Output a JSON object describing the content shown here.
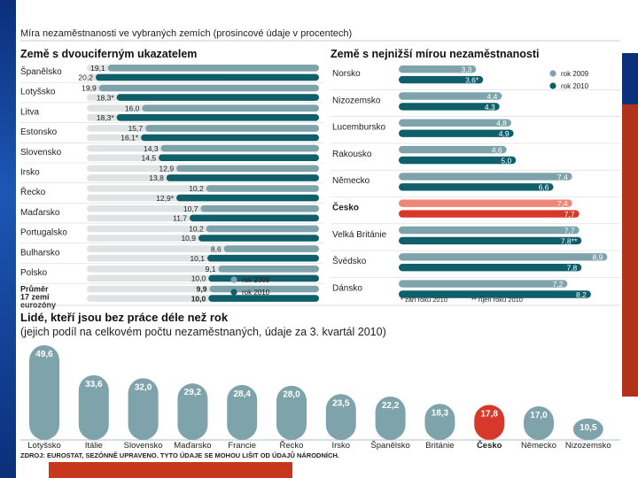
{
  "colors": {
    "light": "#7fa3ab",
    "dark": "#0f5f6b",
    "highlight_light": "#ee8777",
    "highlight_dark": "#d8382a",
    "track": "#dfe3e4",
    "text": "#222222"
  },
  "header": {
    "title": "Míra nezaměstnanosti ve vybraných zemích (prosincové údaje v procentech)"
  },
  "chart_data": [
    {
      "type": "bar",
      "orientation": "horizontal",
      "title": "Země s dvouciferným ukazatelem",
      "max": 21,
      "categories": [
        "Španělsko",
        "Lotyšsko",
        "Litva",
        "Estonsko",
        "Slovensko",
        "Irsko",
        "Řecko",
        "Maďarsko",
        "Portugalsko",
        "Bulharsko",
        "Polsko",
        "Průměr 17 zemí eurozóny"
      ],
      "series": [
        {
          "name": "rok 2009",
          "values": [
            19.1,
            19.9,
            16.0,
            15.7,
            14.3,
            12.9,
            10.2,
            10.7,
            10.2,
            8.6,
            9.1,
            9.9
          ],
          "labels": [
            "19,1",
            "19,9",
            "16,0",
            "15,7",
            "14,3",
            "12,9",
            "10,2",
            "10,7",
            "10,2",
            "8,6",
            "9,1",
            "9,9"
          ]
        },
        {
          "name": "rok 2010",
          "values": [
            20.2,
            18.3,
            18.3,
            16.1,
            14.5,
            13.8,
            12.9,
            11.7,
            10.9,
            10.1,
            10.0,
            10.0
          ],
          "labels": [
            "20,2",
            "18,3*",
            "18,3*",
            "16,1*",
            "14,5",
            "13,8",
            "12,9*",
            "11,7",
            "10,9",
            "10,1",
            "10,0",
            "10,0"
          ]
        }
      ],
      "legend": [
        "rok 2009",
        "rok 2010"
      ]
    },
    {
      "type": "bar",
      "orientation": "horizontal",
      "title": "Země s nejnižší mírou nezaměstnanosti",
      "max": 9,
      "categories": [
        "Norsko",
        "Nizozemsko",
        "Lucembursko",
        "Rakousko",
        "Německo",
        "Česko",
        "Velká Británie",
        "Švédsko",
        "Dánsko"
      ],
      "highlight": "Česko",
      "series": [
        {
          "name": "rok 2009",
          "values": [
            3.3,
            4.4,
            4.8,
            4.6,
            7.4,
            7.4,
            7.7,
            8.9,
            7.2
          ],
          "labels": [
            "3,3",
            "4,4",
            "4,8",
            "4,6",
            "7,4",
            "7,4",
            "7,7",
            "8,9",
            "7,2"
          ]
        },
        {
          "name": "rok 2010",
          "values": [
            3.6,
            4.3,
            4.9,
            5.0,
            6.6,
            7.7,
            7.8,
            7.8,
            8.2
          ],
          "labels": [
            "3,6*",
            "4,3",
            "4,9",
            "5,0",
            "6,6",
            "7,7",
            "7,8**",
            "7,8",
            "8,2"
          ]
        }
      ],
      "legend": [
        "rok 2009",
        "rok 2010"
      ],
      "footnotes": [
        "* září roku 2010",
        "** říjen roku 2010"
      ]
    },
    {
      "type": "bar",
      "orientation": "vertical",
      "title": "Lidé, kteří jsou bez práce déle než rok",
      "subtitle": "(jejich podíl na celkovém počtu nezaměstnaných, údaje za 3. kvartál 2010)",
      "max": 49.6,
      "categories": [
        "Lotyšsko",
        "Itálie",
        "Slovensko",
        "Maďarsko",
        "Francie",
        "Řecko",
        "Irsko",
        "Španělsko",
        "Británie",
        "Česko",
        "Německo",
        "Nizozemsko"
      ],
      "highlight": "Česko",
      "values": [
        49.6,
        33.6,
        32.0,
        29.2,
        28.4,
        28.0,
        23.5,
        22.2,
        18.3,
        17.8,
        17.0,
        10.5
      ],
      "labels": [
        "49,6",
        "33,6",
        "32,0",
        "29,2",
        "28,4",
        "28,0",
        "23,5",
        "22,2",
        "18,3",
        "17,8",
        "17,0",
        "10,5"
      ]
    }
  ],
  "source": "ZDROJ: EUROSTAT, SEZÓNNĚ UPRAVENO. TYTO ÚDAJE SE MOHOU LIŠIT OD ÚDAJŮ NÁRODNÍCH."
}
